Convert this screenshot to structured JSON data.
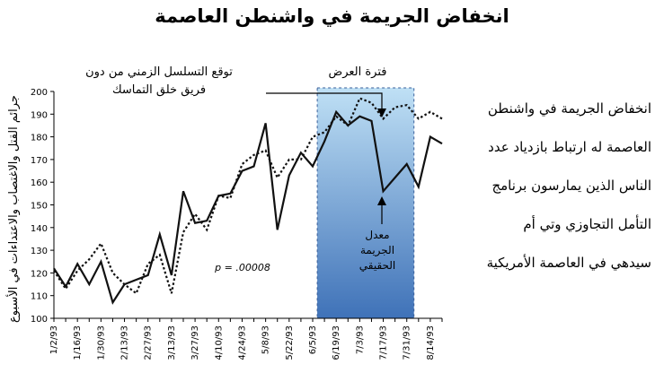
{
  "title": "انخفاض الجريمة في واشنطن العاصمة",
  "side_text": [
    "انخفاض الجريمة في واشنطن",
    "العاصمة له ارتباط بازدياد عدد",
    "الناس الذين يمارسون برنامج",
    "التأمل التجاوزي وتي أم",
    "سيدهي في العاصمة الأمريكية"
  ],
  "colors": {
    "actual_line": "#111111",
    "predicted_line": "#111111",
    "demo_fill_top": "#bfe0f5",
    "demo_fill_bottom": "#3f72b8",
    "demo_border": "#3a5f99"
  },
  "chart_data": {
    "type": "line",
    "ylabel": "جرائم القتل والاغتصاب والاعتداءات في الأسبوع",
    "xlabel": "",
    "ylim": [
      100,
      200
    ],
    "yticks": [
      100,
      110,
      120,
      130,
      140,
      150,
      160,
      170,
      180,
      190,
      200
    ],
    "xtick_labels": [
      "1/2/93",
      "1/16/93",
      "1/30/93",
      "2/13/93",
      "2/27/93",
      "3/13/93",
      "3/27/93",
      "4/10/93",
      "4/24/93",
      "5/8/93",
      "5/22/93",
      "6/5/93",
      "6/19/93",
      "7/3/93",
      "7/17/93",
      "7/31/93",
      "8/14/93"
    ],
    "x": [
      "1/2/93",
      "1/9/93",
      "1/16/93",
      "1/23/93",
      "1/30/93",
      "2/6/93",
      "2/13/93",
      "2/20/93",
      "2/27/93",
      "3/6/93",
      "3/13/93",
      "3/20/93",
      "3/27/93",
      "4/3/93",
      "4/10/93",
      "4/17/93",
      "4/24/93",
      "5/1/93",
      "5/8/93",
      "5/15/93",
      "5/22/93",
      "5/29/93",
      "6/5/93",
      "6/12/93",
      "6/19/93",
      "6/26/93",
      "7/3/93",
      "7/10/93",
      "7/17/93",
      "7/24/93",
      "7/31/93",
      "8/7/93",
      "8/14/93",
      "8/21/93"
    ],
    "series": [
      {
        "key": "actual",
        "style": "solid",
        "values": [
          122,
          114,
          124,
          115,
          125,
          107,
          115,
          117,
          119,
          137,
          119,
          156,
          142,
          143,
          154,
          155,
          165,
          167,
          186,
          139,
          163,
          173,
          167,
          178,
          191,
          185,
          189,
          187,
          156,
          162,
          168,
          158,
          180,
          177
        ]
      },
      {
        "key": "predicted",
        "style": "dotted",
        "values": [
          121,
          113,
          121,
          126,
          133,
          120,
          115,
          111,
          124,
          128,
          111,
          138,
          146,
          139,
          154,
          153,
          168,
          172,
          174,
          162,
          170,
          170,
          180,
          182,
          189,
          185,
          197,
          195,
          188,
          193,
          194,
          188,
          191,
          188
        ]
      }
    ],
    "demonstration_period": {
      "start": "6/12/93",
      "end": "7/31/93",
      "label": "فترة العرض"
    },
    "annotations": {
      "predicted_label": [
        "توقع التسلسل الزمني من دون",
        "فريق خلق التماسك"
      ],
      "actual_label": [
        "معدل",
        "الجريمة",
        "الحقيقي"
      ],
      "p_value": "p = .00008"
    }
  }
}
